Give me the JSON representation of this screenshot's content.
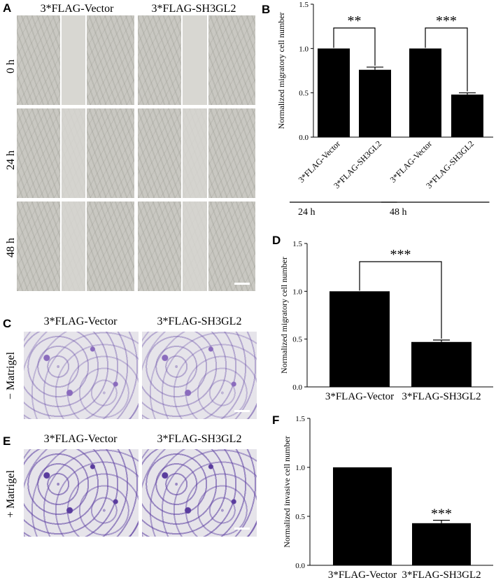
{
  "panels": {
    "A": {
      "letter": "A",
      "columns": [
        "3*FLAG-Vector",
        "3*FLAG-SH3GL2"
      ],
      "rows": [
        "0 h",
        "24 h",
        "48 h"
      ],
      "image_color": "#c9c8c2"
    },
    "C": {
      "letter": "C",
      "columns": [
        "3*FLAG-Vector",
        "3*FLAG-SH3GL2"
      ],
      "row": "− Matrigel",
      "stain_color": "#8a6bbd"
    },
    "E": {
      "letter": "E",
      "columns": [
        "3*FLAG-Vector",
        "3*FLAG-SH3GL2"
      ],
      "row": "+ Matrigel",
      "stain_color": "#5a3c9e"
    },
    "B": {
      "letter": "B"
    },
    "D": {
      "letter": "D"
    },
    "F": {
      "letter": "F"
    }
  },
  "chart_data": [
    {
      "id": "B",
      "type": "bar",
      "categories": [
        "3*FLAG-Vector",
        "3*FLAG-SH3GL2",
        "3*FLAG-Vector",
        "3*FLAG-SH3GL2"
      ],
      "values": [
        1.0,
        0.76,
        1.0,
        0.48
      ],
      "errors": [
        0.0,
        0.03,
        0.0,
        0.02
      ],
      "ylabel": "Normalized migratory cell number",
      "ylim": [
        0,
        1.5
      ],
      "yticks": [
        "0.0",
        "0.5",
        "1.0",
        "1.5"
      ],
      "groups": [
        {
          "label": "24 h",
          "members": [
            0,
            1
          ]
        },
        {
          "label": "48 h",
          "members": [
            2,
            3
          ]
        }
      ],
      "significance": [
        {
          "between": [
            0,
            1
          ],
          "label": "**"
        },
        {
          "between": [
            2,
            3
          ],
          "label": "***"
        }
      ],
      "bar_color": "#000000"
    },
    {
      "id": "D",
      "type": "bar",
      "categories": [
        "3*FLAG-Vector",
        "3*FLAG-SH3GL2"
      ],
      "values": [
        1.0,
        0.47
      ],
      "errors": [
        0.0,
        0.02
      ],
      "ylabel": "Normalized migratory cell number",
      "ylim": [
        0,
        1.5
      ],
      "yticks": [
        "0.0",
        "0.5",
        "1.0",
        "1.5"
      ],
      "significance": [
        {
          "between": [
            0,
            1
          ],
          "label": "***"
        }
      ],
      "bar_color": "#000000"
    },
    {
      "id": "F",
      "type": "bar",
      "categories": [
        "3*FLAG-Vector",
        "3*FLAG-SH3GL2"
      ],
      "values": [
        1.0,
        0.43
      ],
      "errors": [
        0.0,
        0.03
      ],
      "ylabel": "Normalized invasive cell number",
      "ylim": [
        0,
        1.5
      ],
      "yticks": [
        "0.0",
        "0.5",
        "1.0",
        "1.5"
      ],
      "annotations": [
        {
          "bar": 1,
          "label": "***"
        }
      ],
      "bar_color": "#000000"
    }
  ]
}
